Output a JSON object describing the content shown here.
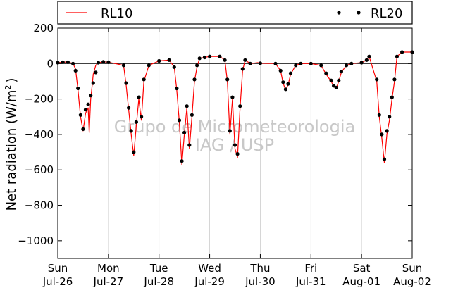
{
  "chart_data": {
    "type": "line",
    "ylabel": "Net radiation (W/m",
    "ylabel_sup": "2",
    "ylabel_close": ")",
    "ylim": [
      -1100,
      200
    ],
    "yticks": [
      200,
      0,
      -200,
      -400,
      -600,
      -800,
      -1000
    ],
    "ytick_labels": [
      "200",
      "0",
      "−200",
      "−400",
      "−600",
      "−800",
      "−1000"
    ],
    "xlim": [
      0,
      7
    ],
    "xticks": [
      {
        "day": "Sun",
        "date": "Jul-26"
      },
      {
        "day": "Mon",
        "date": "Jul-27"
      },
      {
        "day": "Tue",
        "date": "Jul-28"
      },
      {
        "day": "Wed",
        "date": "Jul-29"
      },
      {
        "day": "Thu",
        "date": "Jul-30"
      },
      {
        "day": "Fri",
        "date": "Jul-31"
      },
      {
        "day": "Sat",
        "date": "Aug-01"
      },
      {
        "day": "Sun",
        "date": "Aug-02"
      }
    ],
    "grid": "vertical",
    "zero_line": true,
    "legend": {
      "placement": "top",
      "entries": [
        "RL10",
        "RL20"
      ]
    },
    "watermark": [
      "Grupo de Micrometeorologia",
      "IAG / USP"
    ],
    "series": [
      {
        "name": "RL10",
        "style": "line",
        "color": "#ff0000",
        "x": [
          0.0,
          0.2,
          0.3,
          0.35,
          0.4,
          0.45,
          0.5,
          0.55,
          0.6,
          0.62,
          0.65,
          0.68,
          0.7,
          0.75,
          0.8,
          0.9,
          1.0,
          1.3,
          1.35,
          1.4,
          1.45,
          1.5,
          1.55,
          1.6,
          1.65,
          1.7,
          1.8,
          2.0,
          2.2,
          2.3,
          2.35,
          2.4,
          2.45,
          2.5,
          2.55,
          2.6,
          2.65,
          2.7,
          2.75,
          2.8,
          2.9,
          3.0,
          3.2,
          3.3,
          3.35,
          3.4,
          3.45,
          3.5,
          3.55,
          3.6,
          3.65,
          3.7,
          3.8,
          3.95,
          4.0,
          4.3,
          4.4,
          4.45,
          4.5,
          4.55,
          4.6,
          4.7,
          4.8,
          5.0,
          5.2,
          5.3,
          5.4,
          5.45,
          5.5,
          5.55,
          5.6,
          5.7,
          5.8,
          6.0,
          6.1,
          6.15,
          6.3,
          6.35,
          6.4,
          6.45,
          6.5,
          6.55,
          6.6,
          6.65,
          6.7,
          6.8,
          7.0
        ],
        "y": [
          5,
          10,
          0,
          -30,
          -150,
          -300,
          -380,
          -280,
          -250,
          -390,
          -200,
          -120,
          -60,
          -10,
          5,
          10,
          8,
          -10,
          -120,
          -260,
          -400,
          -520,
          -350,
          -200,
          -320,
          -100,
          -10,
          15,
          20,
          -20,
          -150,
          -330,
          -570,
          -400,
          -250,
          -480,
          -300,
          -100,
          -20,
          30,
          35,
          40,
          40,
          20,
          -100,
          -400,
          -200,
          -480,
          -530,
          -250,
          -40,
          20,
          0,
          5,
          2,
          0,
          -40,
          -110,
          -150,
          -120,
          -60,
          -10,
          0,
          0,
          -10,
          -60,
          -100,
          -130,
          -140,
          -100,
          -50,
          -10,
          0,
          5,
          20,
          40,
          -100,
          -300,
          -420,
          -560,
          -400,
          -320,
          -200,
          -100,
          40,
          65,
          65
        ]
      },
      {
        "name": "RL20",
        "style": "points",
        "color": "#000000",
        "x": [
          0.0,
          0.1,
          0.2,
          0.3,
          0.35,
          0.4,
          0.45,
          0.5,
          0.55,
          0.6,
          0.65,
          0.7,
          0.75,
          0.8,
          0.9,
          1.0,
          1.3,
          1.35,
          1.4,
          1.45,
          1.5,
          1.55,
          1.6,
          1.65,
          1.7,
          1.8,
          2.0,
          2.2,
          2.3,
          2.35,
          2.4,
          2.45,
          2.5,
          2.55,
          2.6,
          2.65,
          2.7,
          2.75,
          2.8,
          2.9,
          3.0,
          3.2,
          3.3,
          3.35,
          3.4,
          3.45,
          3.5,
          3.55,
          3.6,
          3.65,
          3.7,
          3.8,
          4.0,
          4.3,
          4.4,
          4.45,
          4.5,
          4.55,
          4.6,
          4.7,
          4.8,
          5.0,
          5.2,
          5.3,
          5.4,
          5.45,
          5.5,
          5.55,
          5.6,
          5.7,
          5.8,
          6.0,
          6.1,
          6.15,
          6.3,
          6.35,
          6.4,
          6.45,
          6.5,
          6.55,
          6.6,
          6.65,
          6.7,
          6.8,
          7.0
        ],
        "y": [
          5,
          8,
          8,
          0,
          -40,
          -140,
          -290,
          -370,
          -260,
          -230,
          -180,
          -110,
          -50,
          5,
          10,
          8,
          -10,
          -110,
          -250,
          -380,
          -500,
          -330,
          -190,
          -300,
          -90,
          -10,
          15,
          20,
          -20,
          -140,
          -320,
          -550,
          -390,
          -240,
          -460,
          -290,
          -90,
          -10,
          30,
          35,
          40,
          40,
          20,
          -90,
          -380,
          -190,
          -460,
          -510,
          -240,
          -30,
          20,
          0,
          2,
          0,
          -40,
          -105,
          -145,
          -115,
          -55,
          -10,
          0,
          0,
          -10,
          -55,
          -95,
          -125,
          -135,
          -95,
          -45,
          -10,
          0,
          5,
          20,
          40,
          -90,
          -290,
          -400,
          -540,
          -380,
          -300,
          -190,
          -90,
          40,
          65,
          65
        ]
      }
    ]
  }
}
